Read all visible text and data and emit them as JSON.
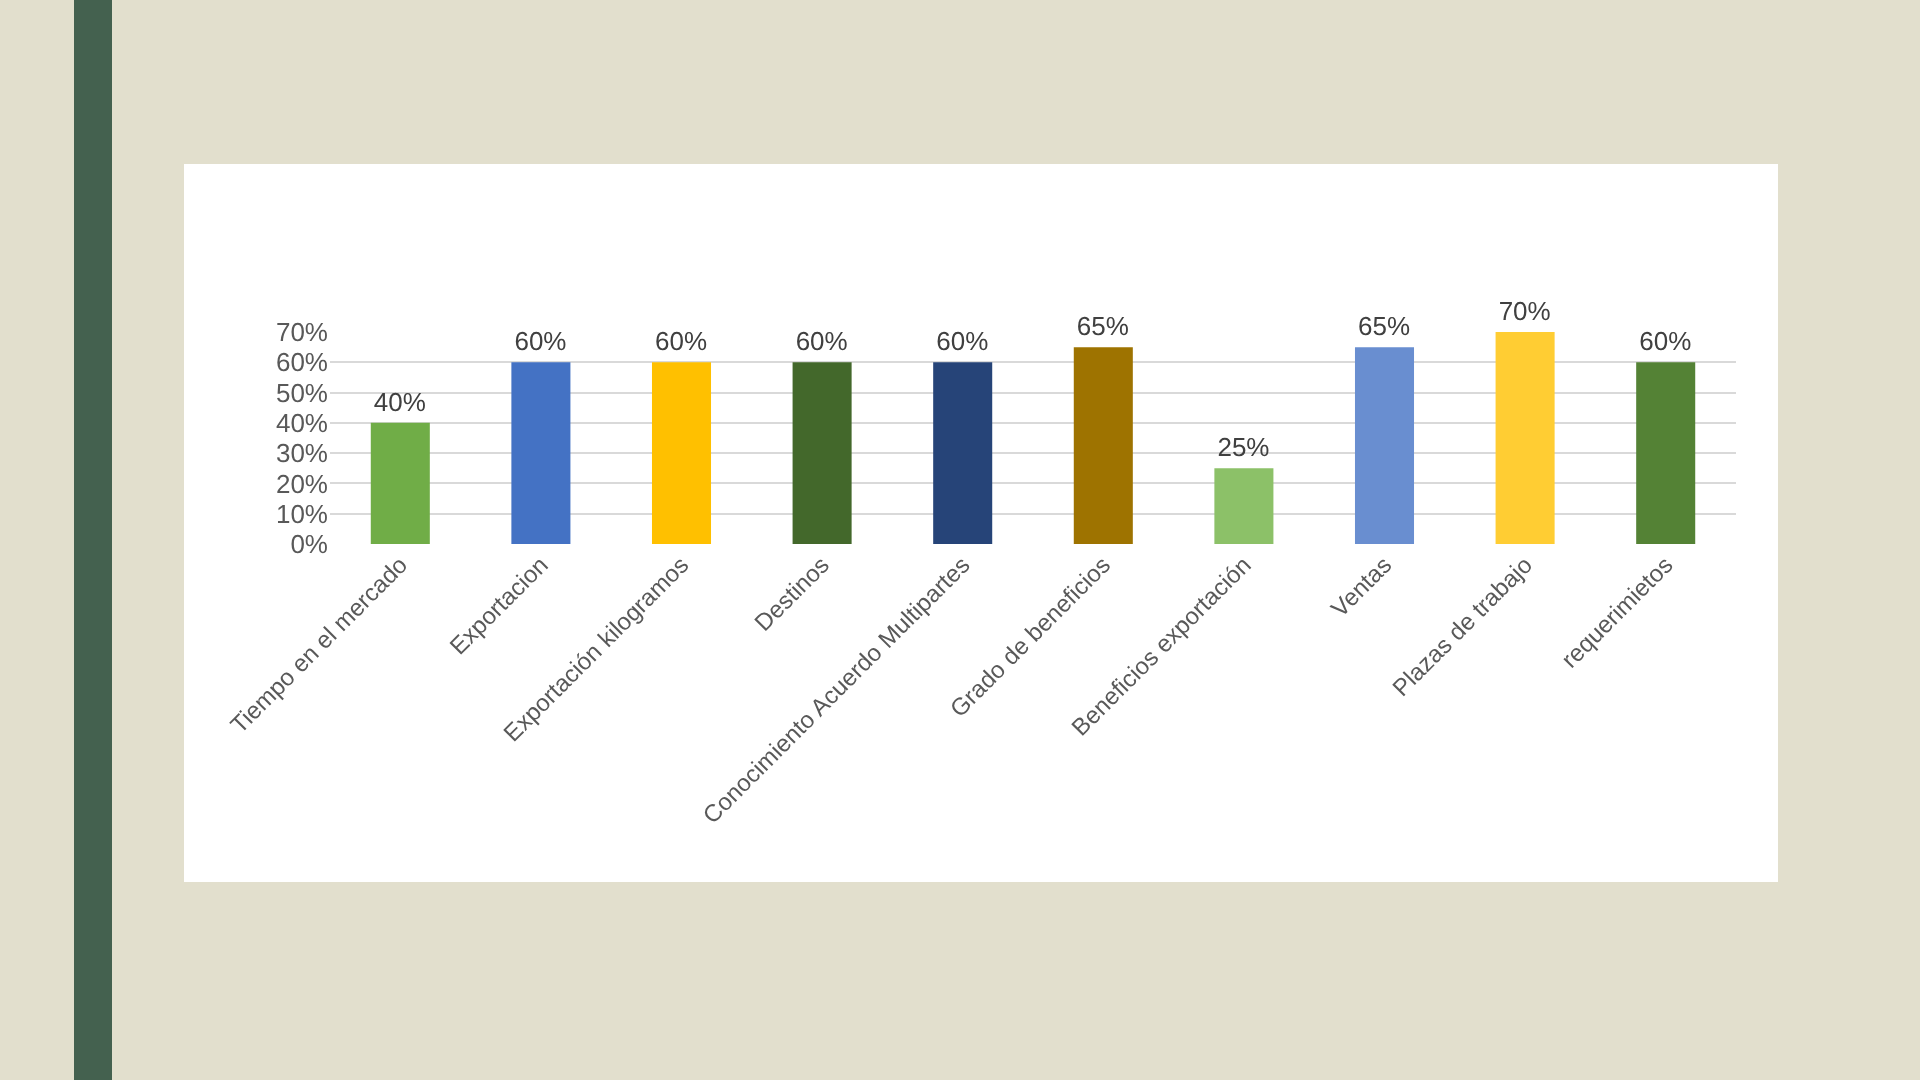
{
  "chart_data": {
    "type": "bar",
    "categories": [
      "Tiempo en el mercado",
      "Exportacion",
      "Exportación kilogramos",
      "Destinos",
      "Conocimiento Acuerdo Multipartes",
      "Grado de beneficios",
      "Beneficios exportación",
      "Ventas",
      "Plazas de trabajo",
      "requerimietos"
    ],
    "values": [
      40,
      60,
      60,
      60,
      60,
      65,
      25,
      65,
      70,
      60
    ],
    "value_labels": [
      "40%",
      "60%",
      "60%",
      "60%",
      "60%",
      "65%",
      "25%",
      "65%",
      "70%",
      "60%"
    ],
    "colors": [
      "#70ad47",
      "#4472c4",
      "#ffc000",
      "#43682b",
      "#264478",
      "#9e7300",
      "#8cc168",
      "#698ed0",
      "#ffcd33",
      "#548235"
    ],
    "ylim": [
      0,
      70
    ],
    "yticks": [
      {
        "value": 0,
        "label": "0%"
      },
      {
        "value": 10,
        "label": "10%"
      },
      {
        "value": 20,
        "label": "20%"
      },
      {
        "value": 30,
        "label": "30%"
      },
      {
        "value": 40,
        "label": "40%"
      },
      {
        "value": 50,
        "label": "50%"
      },
      {
        "value": 60,
        "label": "60%"
      },
      {
        "value": 70,
        "label": "70%"
      }
    ],
    "grid": "y"
  }
}
